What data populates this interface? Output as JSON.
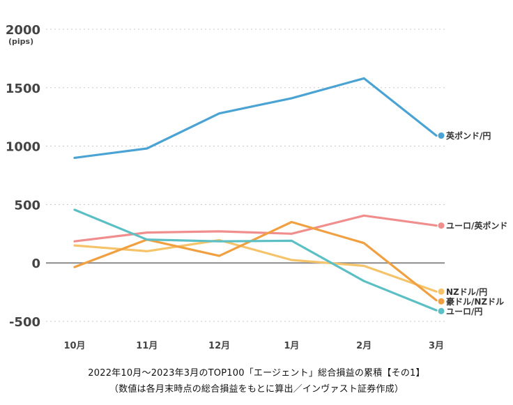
{
  "chart_data": {
    "type": "line",
    "unit_label": "(pips)",
    "categories": [
      "10月",
      "11月",
      "12月",
      "1月",
      "2月",
      "3月"
    ],
    "ylim": [
      -500,
      2000
    ],
    "yticks": [
      "2000",
      "1500",
      "1000",
      "500",
      "0",
      "-500"
    ],
    "ytick_values": [
      2000,
      1500,
      1000,
      500,
      0,
      -500
    ],
    "grid": "dotted horizontal",
    "series": [
      {
        "name": "英ポンド/円",
        "color": "#4aa3d3",
        "values": [
          900,
          980,
          1280,
          1410,
          1580,
          1090
        ]
      },
      {
        "name": "ユーロ/英ポンド",
        "color": "#f08e8e",
        "values": [
          185,
          260,
          270,
          250,
          405,
          320
        ]
      },
      {
        "name": "NZドル/円",
        "color": "#f5c36a",
        "values": [
          150,
          100,
          195,
          25,
          -25,
          -245
        ]
      },
      {
        "name": "豪ドル/NZドル",
        "color": "#f0a040",
        "values": [
          -35,
          200,
          60,
          350,
          170,
          -320
        ]
      },
      {
        "name": "ユーロ/円",
        "color": "#5bbfc4",
        "values": [
          455,
          200,
          185,
          190,
          -155,
          -405
        ]
      }
    ]
  },
  "caption": {
    "line1": "2022年10月～2023年3月のTOP100「エージェント」総合損益の累積【その1】",
    "line2": "（数値は各月末時点の総合損益をもとに算出／インヴァスト証券作成）"
  }
}
